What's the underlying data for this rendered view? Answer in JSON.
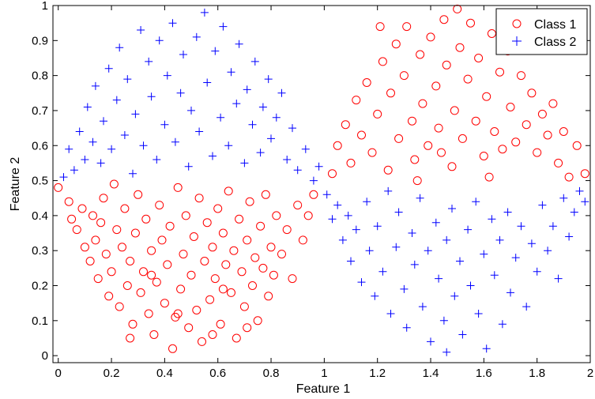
{
  "chart_data": {
    "type": "scatter",
    "title": "",
    "xlabel": "Feature 1",
    "ylabel": "Feature 2",
    "xlim": [
      -0.02,
      2.0
    ],
    "ylim": [
      -0.02,
      1.0
    ],
    "x_ticks": [
      "0",
      "0.2",
      "0.4",
      "0.6",
      "0.8",
      "1",
      "1.2",
      "1.4",
      "1.6",
      "1.8",
      "2"
    ],
    "y_ticks": [
      "0",
      "0.1",
      "0.2",
      "0.3",
      "0.4",
      "0.5",
      "0.6",
      "0.7",
      "0.8",
      "0.9",
      "1"
    ],
    "grid": false,
    "legend_position": "top-right",
    "series": [
      {
        "name": "Class 1",
        "marker": "circle",
        "color": "#ff0000",
        "points": [
          [
            0.0,
            0.48
          ],
          [
            0.04,
            0.44
          ],
          [
            0.05,
            0.39
          ],
          [
            0.07,
            0.36
          ],
          [
            0.09,
            0.42
          ],
          [
            0.1,
            0.31
          ],
          [
            0.12,
            0.27
          ],
          [
            0.14,
            0.33
          ],
          [
            0.15,
            0.22
          ],
          [
            0.16,
            0.38
          ],
          [
            0.17,
            0.45
          ],
          [
            0.18,
            0.29
          ],
          [
            0.19,
            0.17
          ],
          [
            0.2,
            0.24
          ],
          [
            0.21,
            0.49
          ],
          [
            0.22,
            0.36
          ],
          [
            0.23,
            0.14
          ],
          [
            0.24,
            0.31
          ],
          [
            0.25,
            0.42
          ],
          [
            0.26,
            0.2
          ],
          [
            0.27,
            0.27
          ],
          [
            0.28,
            0.09
          ],
          [
            0.29,
            0.35
          ],
          [
            0.3,
            0.46
          ],
          [
            0.31,
            0.18
          ],
          [
            0.32,
            0.24
          ],
          [
            0.33,
            0.39
          ],
          [
            0.34,
            0.12
          ],
          [
            0.35,
            0.3
          ],
          [
            0.36,
            0.06
          ],
          [
            0.37,
            0.21
          ],
          [
            0.38,
            0.43
          ],
          [
            0.39,
            0.33
          ],
          [
            0.4,
            0.15
          ],
          [
            0.41,
            0.26
          ],
          [
            0.42,
            0.37
          ],
          [
            0.43,
            0.02
          ],
          [
            0.44,
            0.11
          ],
          [
            0.45,
            0.48
          ],
          [
            0.46,
            0.19
          ],
          [
            0.47,
            0.29
          ],
          [
            0.48,
            0.4
          ],
          [
            0.49,
            0.08
          ],
          [
            0.5,
            0.23
          ],
          [
            0.51,
            0.34
          ],
          [
            0.52,
            0.13
          ],
          [
            0.53,
            0.45
          ],
          [
            0.54,
            0.04
          ],
          [
            0.55,
            0.27
          ],
          [
            0.56,
            0.38
          ],
          [
            0.57,
            0.16
          ],
          [
            0.58,
            0.31
          ],
          [
            0.59,
            0.22
          ],
          [
            0.6,
            0.42
          ],
          [
            0.61,
            0.09
          ],
          [
            0.62,
            0.35
          ],
          [
            0.63,
            0.26
          ],
          [
            0.64,
            0.47
          ],
          [
            0.65,
            0.18
          ],
          [
            0.66,
            0.3
          ],
          [
            0.67,
            0.05
          ],
          [
            0.68,
            0.39
          ],
          [
            0.69,
            0.24
          ],
          [
            0.7,
            0.14
          ],
          [
            0.71,
            0.33
          ],
          [
            0.72,
            0.44
          ],
          [
            0.73,
            0.2
          ],
          [
            0.74,
            0.28
          ],
          [
            0.75,
            0.1
          ],
          [
            0.76,
            0.37
          ],
          [
            0.77,
            0.25
          ],
          [
            0.78,
            0.46
          ],
          [
            0.79,
            0.17
          ],
          [
            0.8,
            0.31
          ],
          [
            0.81,
            0.23
          ],
          [
            0.82,
            0.4
          ],
          [
            0.84,
            0.29
          ],
          [
            0.86,
            0.36
          ],
          [
            0.88,
            0.22
          ],
          [
            0.9,
            0.43
          ],
          [
            0.92,
            0.33
          ],
          [
            0.94,
            0.4
          ],
          [
            0.96,
            0.46
          ],
          [
            0.13,
            0.4
          ],
          [
            0.27,
            0.05
          ],
          [
            0.58,
            0.06
          ],
          [
            0.71,
            0.08
          ],
          [
            0.35,
            0.23
          ],
          [
            0.45,
            0.12
          ],
          [
            0.62,
            0.19
          ],
          [
            1.03,
            0.52
          ],
          [
            1.05,
            0.6
          ],
          [
            1.08,
            0.66
          ],
          [
            1.1,
            0.55
          ],
          [
            1.12,
            0.73
          ],
          [
            1.14,
            0.63
          ],
          [
            1.16,
            0.78
          ],
          [
            1.18,
            0.58
          ],
          [
            1.2,
            0.69
          ],
          [
            1.22,
            0.84
          ],
          [
            1.24,
            0.53
          ],
          [
            1.25,
            0.75
          ],
          [
            1.27,
            0.89
          ],
          [
            1.28,
            0.62
          ],
          [
            1.3,
            0.8
          ],
          [
            1.31,
            0.94
          ],
          [
            1.33,
            0.67
          ],
          [
            1.34,
            0.56
          ],
          [
            1.36,
            0.86
          ],
          [
            1.37,
            0.72
          ],
          [
            1.39,
            0.6
          ],
          [
            1.4,
            0.91
          ],
          [
            1.42,
            0.77
          ],
          [
            1.43,
            0.65
          ],
          [
            1.45,
            0.96
          ],
          [
            1.46,
            0.83
          ],
          [
            1.48,
            0.54
          ],
          [
            1.49,
            0.7
          ],
          [
            1.51,
            0.88
          ],
          [
            1.52,
            0.62
          ],
          [
            1.54,
            0.79
          ],
          [
            1.55,
            0.95
          ],
          [
            1.57,
            0.67
          ],
          [
            1.58,
            0.85
          ],
          [
            1.6,
            0.57
          ],
          [
            1.61,
            0.74
          ],
          [
            1.63,
            0.92
          ],
          [
            1.64,
            0.64
          ],
          [
            1.66,
            0.81
          ],
          [
            1.67,
            0.59
          ],
          [
            1.69,
            0.87
          ],
          [
            1.7,
            0.71
          ],
          [
            1.72,
            0.61
          ],
          [
            1.74,
            0.8
          ],
          [
            1.76,
            0.66
          ],
          [
            1.78,
            0.75
          ],
          [
            1.8,
            0.58
          ],
          [
            1.82,
            0.69
          ],
          [
            1.84,
            0.63
          ],
          [
            1.86,
            0.72
          ],
          [
            1.88,
            0.55
          ],
          [
            1.9,
            0.64
          ],
          [
            1.92,
            0.51
          ],
          [
            1.95,
            0.6
          ],
          [
            1.98,
            0.52
          ],
          [
            1.35,
            0.5
          ],
          [
            1.5,
            0.99
          ],
          [
            1.21,
            0.94
          ],
          [
            1.62,
            0.51
          ],
          [
            1.44,
            0.58
          ]
        ]
      },
      {
        "name": "Class 2",
        "marker": "plus",
        "color": "#0000ff",
        "points": [
          [
            0.02,
            0.51
          ],
          [
            0.04,
            0.59
          ],
          [
            0.06,
            0.53
          ],
          [
            0.08,
            0.64
          ],
          [
            0.1,
            0.56
          ],
          [
            0.11,
            0.71
          ],
          [
            0.13,
            0.61
          ],
          [
            0.14,
            0.77
          ],
          [
            0.16,
            0.55
          ],
          [
            0.17,
            0.67
          ],
          [
            0.19,
            0.82
          ],
          [
            0.2,
            0.59
          ],
          [
            0.22,
            0.73
          ],
          [
            0.23,
            0.88
          ],
          [
            0.25,
            0.63
          ],
          [
            0.26,
            0.79
          ],
          [
            0.28,
            0.52
          ],
          [
            0.29,
            0.69
          ],
          [
            0.31,
            0.93
          ],
          [
            0.32,
            0.6
          ],
          [
            0.34,
            0.84
          ],
          [
            0.35,
            0.74
          ],
          [
            0.37,
            0.56
          ],
          [
            0.38,
            0.9
          ],
          [
            0.4,
            0.66
          ],
          [
            0.41,
            0.8
          ],
          [
            0.43,
            0.95
          ],
          [
            0.44,
            0.61
          ],
          [
            0.46,
            0.75
          ],
          [
            0.47,
            0.86
          ],
          [
            0.49,
            0.54
          ],
          [
            0.5,
            0.7
          ],
          [
            0.52,
            0.91
          ],
          [
            0.53,
            0.64
          ],
          [
            0.55,
            0.98
          ],
          [
            0.56,
            0.78
          ],
          [
            0.58,
            0.57
          ],
          [
            0.59,
            0.87
          ],
          [
            0.61,
            0.68
          ],
          [
            0.62,
            0.94
          ],
          [
            0.64,
            0.6
          ],
          [
            0.65,
            0.81
          ],
          [
            0.67,
            0.72
          ],
          [
            0.68,
            0.89
          ],
          [
            0.7,
            0.55
          ],
          [
            0.71,
            0.76
          ],
          [
            0.73,
            0.66
          ],
          [
            0.74,
            0.84
          ],
          [
            0.76,
            0.58
          ],
          [
            0.77,
            0.71
          ],
          [
            0.79,
            0.79
          ],
          [
            0.8,
            0.62
          ],
          [
            0.82,
            0.68
          ],
          [
            0.84,
            0.75
          ],
          [
            0.86,
            0.56
          ],
          [
            0.88,
            0.65
          ],
          [
            0.9,
            0.53
          ],
          [
            0.93,
            0.59
          ],
          [
            0.96,
            0.5
          ],
          [
            0.98,
            0.54
          ],
          [
            1.01,
            0.46
          ],
          [
            1.03,
            0.39
          ],
          [
            1.05,
            0.43
          ],
          [
            1.07,
            0.33
          ],
          [
            1.09,
            0.4
          ],
          [
            1.1,
            0.27
          ],
          [
            1.12,
            0.36
          ],
          [
            1.14,
            0.21
          ],
          [
            1.16,
            0.44
          ],
          [
            1.17,
            0.3
          ],
          [
            1.19,
            0.17
          ],
          [
            1.2,
            0.37
          ],
          [
            1.22,
            0.24
          ],
          [
            1.24,
            0.47
          ],
          [
            1.25,
            0.12
          ],
          [
            1.27,
            0.31
          ],
          [
            1.28,
            0.41
          ],
          [
            1.3,
            0.19
          ],
          [
            1.31,
            0.08
          ],
          [
            1.33,
            0.35
          ],
          [
            1.34,
            0.26
          ],
          [
            1.36,
            0.45
          ],
          [
            1.37,
            0.14
          ],
          [
            1.39,
            0.3
          ],
          [
            1.4,
            0.04
          ],
          [
            1.42,
            0.38
          ],
          [
            1.43,
            0.22
          ],
          [
            1.45,
            0.1
          ],
          [
            1.46,
            0.33
          ],
          [
            1.48,
            0.42
          ],
          [
            1.49,
            0.17
          ],
          [
            1.51,
            0.27
          ],
          [
            1.52,
            0.06
          ],
          [
            1.54,
            0.36
          ],
          [
            1.55,
            0.2
          ],
          [
            1.57,
            0.44
          ],
          [
            1.58,
            0.12
          ],
          [
            1.6,
            0.29
          ],
          [
            1.61,
            0.02
          ],
          [
            1.63,
            0.39
          ],
          [
            1.64,
            0.23
          ],
          [
            1.66,
            0.33
          ],
          [
            1.67,
            0.09
          ],
          [
            1.69,
            0.41
          ],
          [
            1.7,
            0.18
          ],
          [
            1.72,
            0.28
          ],
          [
            1.74,
            0.37
          ],
          [
            1.76,
            0.14
          ],
          [
            1.78,
            0.32
          ],
          [
            1.8,
            0.24
          ],
          [
            1.82,
            0.43
          ],
          [
            1.84,
            0.3
          ],
          [
            1.86,
            0.37
          ],
          [
            1.88,
            0.22
          ],
          [
            1.9,
            0.45
          ],
          [
            1.92,
            0.34
          ],
          [
            1.94,
            0.41
          ],
          [
            1.96,
            0.47
          ],
          [
            1.98,
            0.44
          ],
          [
            1.46,
            0.01
          ]
        ]
      }
    ]
  }
}
